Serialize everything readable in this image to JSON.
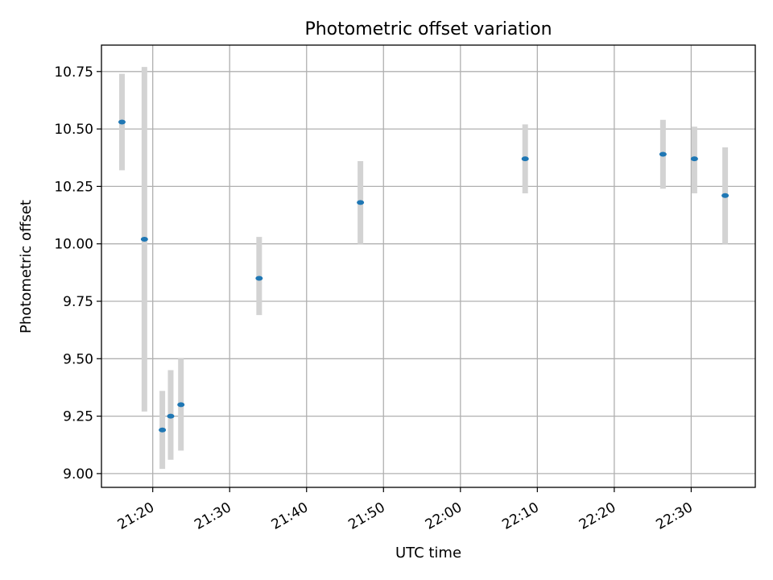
{
  "chart_data": {
    "type": "scatter",
    "title": "Photometric offset variation",
    "xlabel": "UTC time",
    "ylabel": "Photometric offset",
    "x_ticks": [
      "21:20",
      "21:30",
      "21:40",
      "21:50",
      "22:00",
      "22:10",
      "22:20",
      "22:30"
    ],
    "y_ticks": [
      "9.00",
      "9.25",
      "9.50",
      "9.75",
      "10.00",
      "10.25",
      "10.50",
      "10.75"
    ],
    "x_range": [
      "21:13:20",
      "22:38:20"
    ],
    "ylim": [
      8.94,
      10.865
    ],
    "grid": true,
    "legend": "none",
    "colors": {
      "marker": "#1f77b4",
      "errorbar": "#d3d3d3",
      "grid": "#b0b0b0"
    },
    "points": [
      {
        "t": "21:16:00",
        "y": 10.53,
        "lo": 10.32,
        "hi": 10.74
      },
      {
        "t": "21:18:55",
        "y": 10.02,
        "lo": 9.27,
        "hi": 10.77
      },
      {
        "t": "21:21:15",
        "y": 9.19,
        "lo": 9.02,
        "hi": 9.36
      },
      {
        "t": "21:22:20",
        "y": 9.25,
        "lo": 9.06,
        "hi": 9.45
      },
      {
        "t": "21:23:40",
        "y": 9.3,
        "lo": 9.1,
        "hi": 9.5
      },
      {
        "t": "21:33:50",
        "y": 9.85,
        "lo": 9.69,
        "hi": 10.03
      },
      {
        "t": "21:47:00",
        "y": 10.18,
        "lo": 10.0,
        "hi": 10.36
      },
      {
        "t": "22:08:25",
        "y": 10.37,
        "lo": 10.22,
        "hi": 10.52
      },
      {
        "t": "22:26:20",
        "y": 10.39,
        "lo": 10.24,
        "hi": 10.54
      },
      {
        "t": "22:30:25",
        "y": 10.37,
        "lo": 10.22,
        "hi": 10.51
      },
      {
        "t": "22:34:25",
        "y": 10.21,
        "lo": 10.0,
        "hi": 10.42
      }
    ]
  }
}
